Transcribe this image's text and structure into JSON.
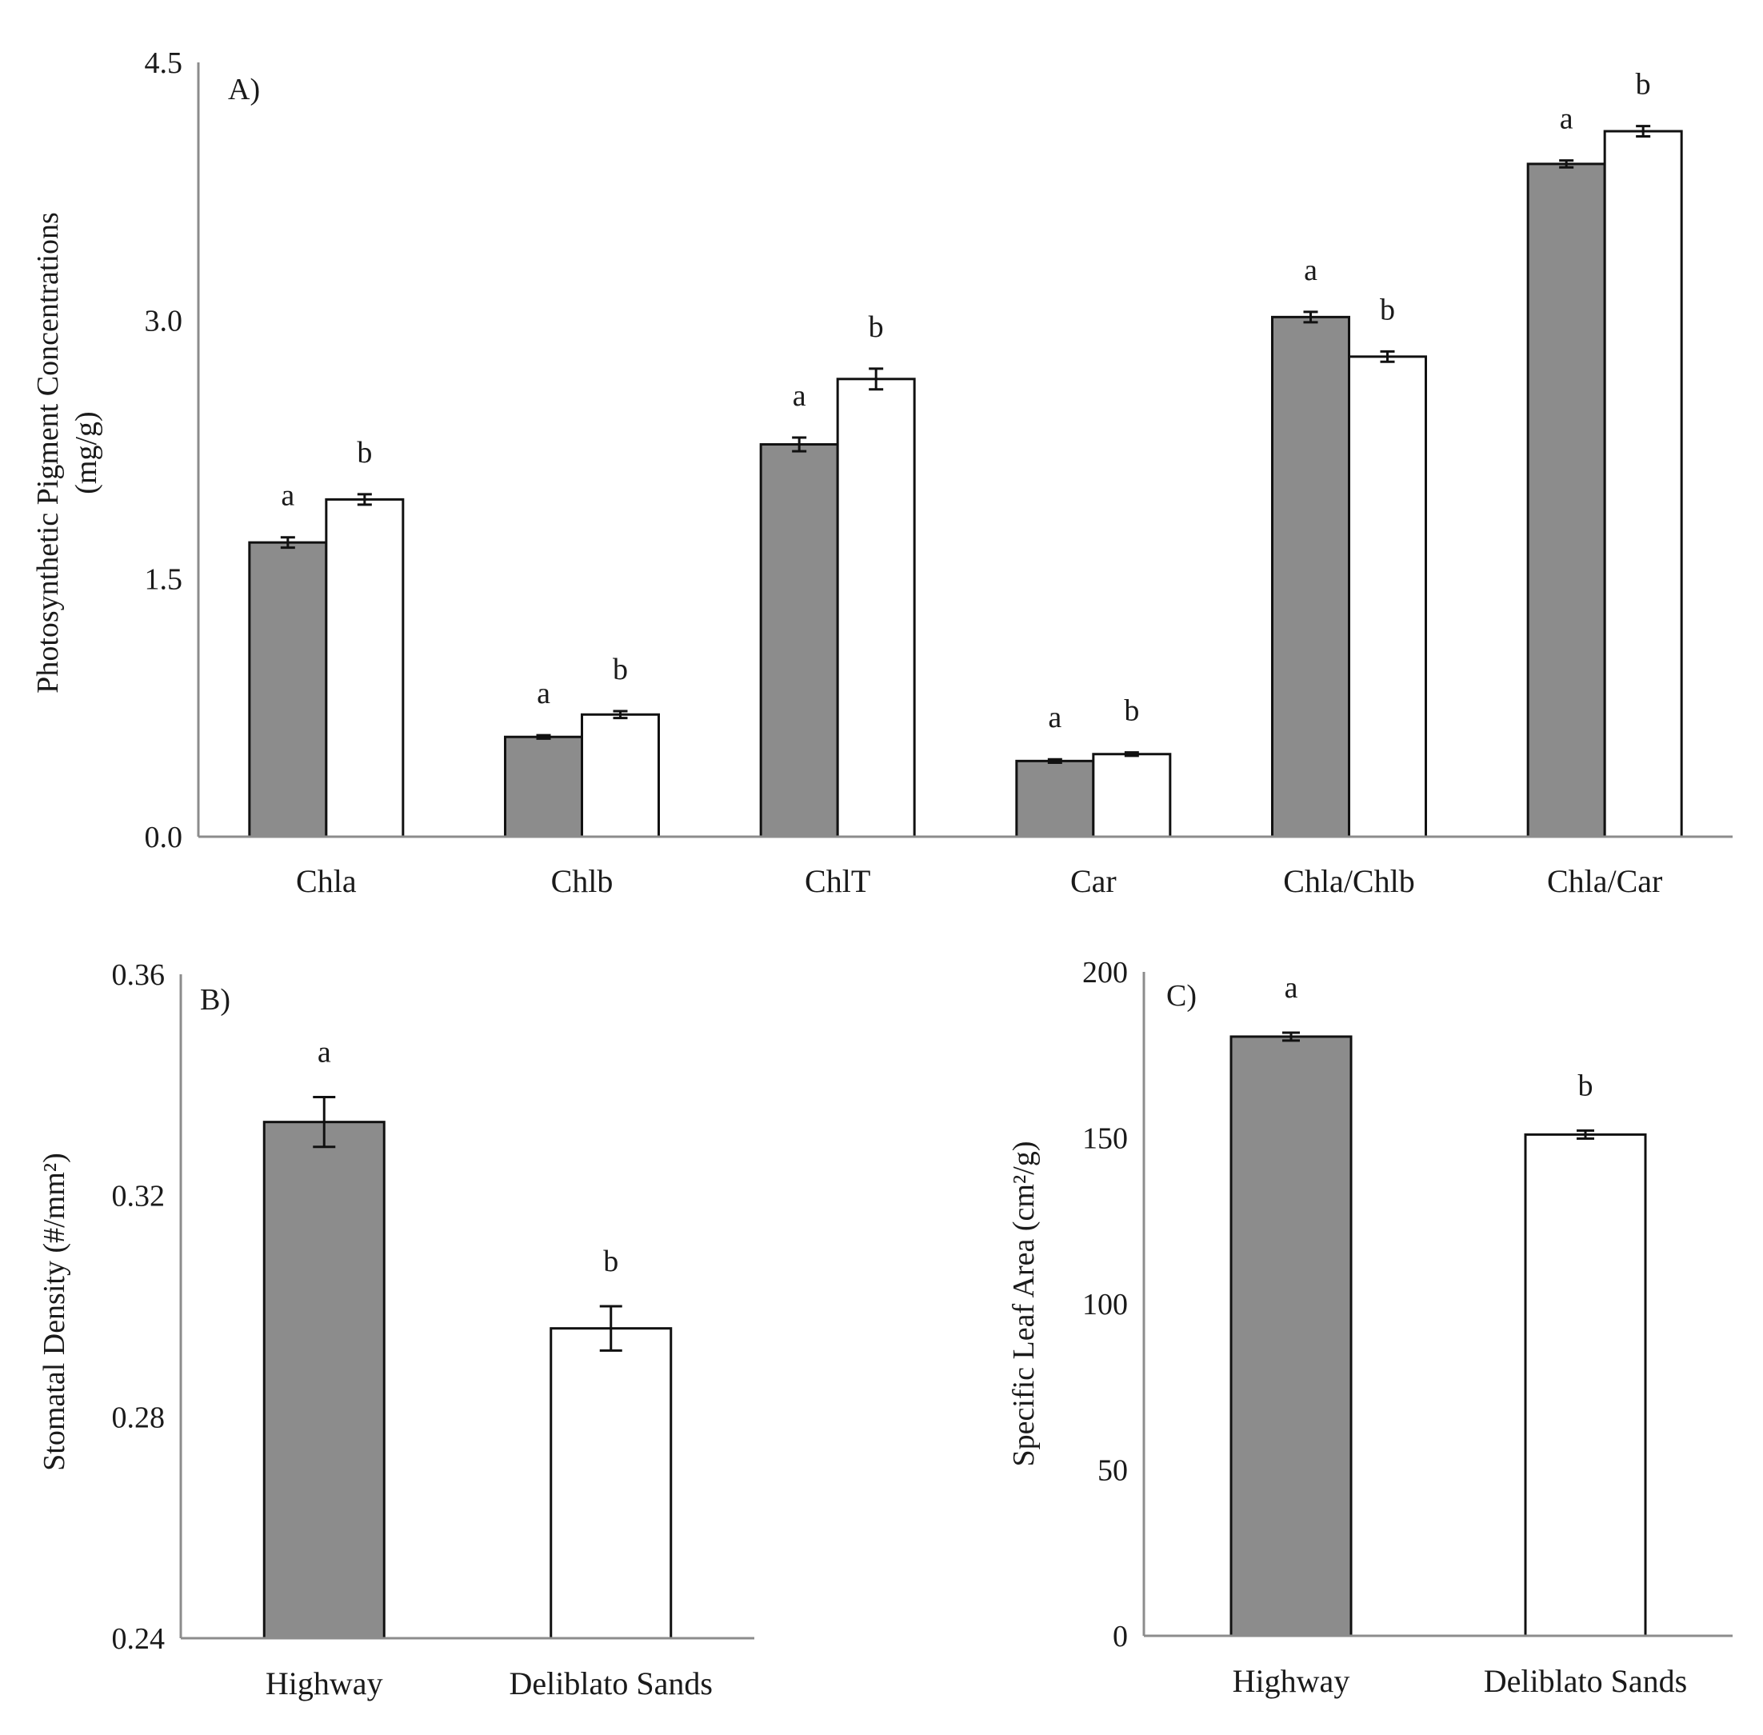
{
  "figure": {
    "colors": {
      "highway": "#8c8c8c",
      "deliblato": "#ffffff",
      "outline": "#111111",
      "axis": "#8c8c8c"
    }
  },
  "chart_data": [
    {
      "id": "A",
      "type": "bar",
      "panel_label": "A)",
      "ylabel_line1": "Photosynthetic  Pigment  Concentrations",
      "ylabel_line2": "(mg/g)",
      "ylim": [
        0,
        4.5
      ],
      "yticks": [
        "0.0",
        "1.5",
        "3.0",
        "4.5"
      ],
      "ytick_values": [
        0,
        1.5,
        3.0,
        4.5
      ],
      "categories": [
        "Chla",
        "Chlb",
        "ChlT",
        "Car",
        "Chla/Chlb",
        "Chla/Car"
      ],
      "series": [
        {
          "name": "Highway",
          "color": "#8c8c8c",
          "values": [
            1.71,
            0.58,
            2.28,
            0.44,
            3.02,
            3.91
          ],
          "errors": [
            0.03,
            0.01,
            0.04,
            0.01,
            0.03,
            0.02
          ],
          "letters": [
            "a",
            "a",
            "a",
            "a",
            "a",
            "a"
          ]
        },
        {
          "name": "Deliblato Sands",
          "color": "#ffffff",
          "values": [
            1.96,
            0.71,
            2.66,
            0.48,
            2.79,
            4.1
          ],
          "errors": [
            0.03,
            0.02,
            0.06,
            0.01,
            0.03,
            0.03
          ],
          "letters": [
            "b",
            "b",
            "b",
            "b",
            "b",
            "b"
          ]
        }
      ]
    },
    {
      "id": "B",
      "type": "bar",
      "panel_label": "B)",
      "ylabel": "Stomatal  Density  (#/mm²)",
      "ylim": [
        0.24,
        0.36
      ],
      "yticks": [
        "0.24",
        "0.28",
        "0.32",
        "0.36"
      ],
      "ytick_values": [
        0.24,
        0.28,
        0.32,
        0.36
      ],
      "categories": [
        "Highway",
        "Deliblato Sands"
      ],
      "values": [
        0.3333,
        0.296
      ],
      "errors": [
        0.0045,
        0.004
      ],
      "colors": [
        "#8c8c8c",
        "#ffffff"
      ],
      "letters": [
        "a",
        "b"
      ]
    },
    {
      "id": "C",
      "type": "bar",
      "panel_label": "C)",
      "ylabel": "Specific  Leaf  Area  (cm²/g)",
      "ylim": [
        0,
        200
      ],
      "yticks": [
        "0",
        "50",
        "100",
        "150",
        "200"
      ],
      "ytick_values": [
        0,
        50,
        100,
        150,
        200
      ],
      "categories": [
        "Highway",
        "Deliblato Sands"
      ],
      "values": [
        180.5,
        151.0
      ],
      "errors": [
        1.2,
        1.2
      ],
      "colors": [
        "#8c8c8c",
        "#ffffff"
      ],
      "letters": [
        "a",
        "b"
      ]
    }
  ]
}
